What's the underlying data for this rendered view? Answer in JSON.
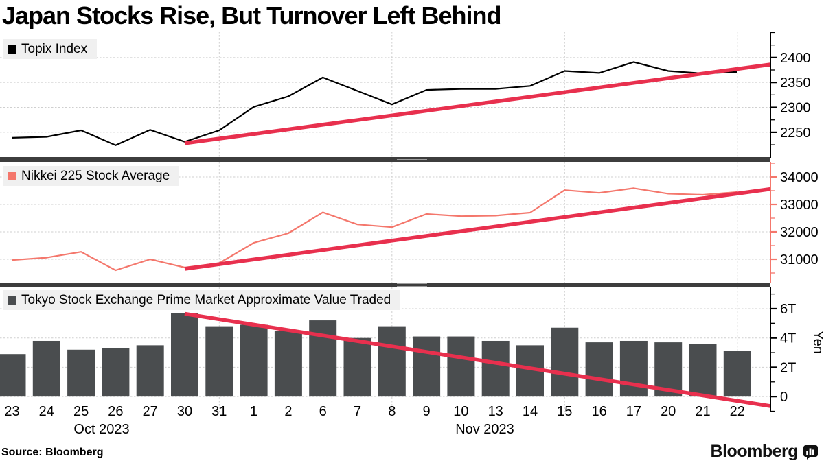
{
  "title": "Japan Stocks Rise, But Turnover Left Behind",
  "source_label": "Source: Bloomberg",
  "brand": {
    "name": "Bloomberg",
    "icon": "bloomberg-chart-bubble-icon"
  },
  "colors": {
    "trend_red": "#e8304e",
    "topix_line": "#000000",
    "nikkei_line": "#f4776c",
    "bar_fill": "#4a4d4f",
    "grid": "#cfcfcf",
    "divider": "#3d3d3d",
    "legend_bg": "#f0f0f0"
  },
  "x_axis": {
    "categories": [
      "23",
      "24",
      "25",
      "26",
      "27",
      "30",
      "31",
      "1",
      "2",
      "6",
      "7",
      "8",
      "9",
      "10",
      "13",
      "14",
      "15",
      "16",
      "17",
      "20",
      "21",
      "22"
    ],
    "gridline_indices": [
      6,
      11,
      16,
      21
    ],
    "month_labels": [
      {
        "label": "Oct 2023",
        "x": 148
      },
      {
        "label": "Nov 2023",
        "x": 706
      }
    ]
  },
  "chart_data": [
    {
      "type": "line",
      "name": "Topix Index",
      "color": "#000000",
      "axis_color": "#000000",
      "ylim": [
        2199,
        2452
      ],
      "y_ticks": [
        2250,
        2300,
        2350,
        2400
      ],
      "y_tick_labels": [
        "2250",
        "2300",
        "2350",
        "2400"
      ],
      "y_minor_step": 25,
      "values": [
        2239,
        2241,
        2254,
        2224,
        2255,
        2231,
        2254,
        2301,
        2322,
        2360,
        2333,
        2306,
        2335,
        2337,
        2337,
        2343,
        2373,
        2369,
        2391,
        2373,
        2368,
        2371
      ],
      "trend": {
        "start_index": 5,
        "start_value": 2228,
        "end_value": 2386
      }
    },
    {
      "type": "line",
      "name": "Nikkei 225 Stock Average",
      "color": "#f4776c",
      "axis_color": "#f4776c",
      "ylim": [
        30150,
        34550
      ],
      "y_ticks": [
        31000,
        32000,
        33000,
        34000
      ],
      "y_tick_labels": [
        "31000",
        "32000",
        "33000",
        "34000"
      ],
      "y_minor_step": 500,
      "values": [
        30970,
        31060,
        31270,
        30600,
        31000,
        30700,
        30860,
        31600,
        31950,
        32710,
        32270,
        32170,
        32650,
        32570,
        32590,
        32700,
        33520,
        33420,
        33590,
        33390,
        33350,
        33450
      ],
      "trend": {
        "start_index": 5,
        "start_value": 30650,
        "end_value": 33560
      }
    },
    {
      "type": "bar",
      "name": "Tokyo Stock Exchange Prime Market Approximate Value Traded",
      "color": "#4a4d4f",
      "axis_color": "#000000",
      "ylim": [
        -1.07,
        7.45
      ],
      "y_ticks": [
        0,
        2,
        4,
        6
      ],
      "y_tick_labels": [
        "0",
        "2T",
        "4T",
        "6T"
      ],
      "y_minor_step": 1,
      "y_axis_title": "Yen",
      "values": [
        2.9,
        3.8,
        3.2,
        3.3,
        3.5,
        5.7,
        4.8,
        4.9,
        4.5,
        5.2,
        4.0,
        4.8,
        4.1,
        4.1,
        3.8,
        3.5,
        4.7,
        3.7,
        3.8,
        3.7,
        3.6,
        3.1
      ],
      "trend": {
        "start_index": 5,
        "start_value": 5.65,
        "end_value": -0.65
      }
    }
  ]
}
